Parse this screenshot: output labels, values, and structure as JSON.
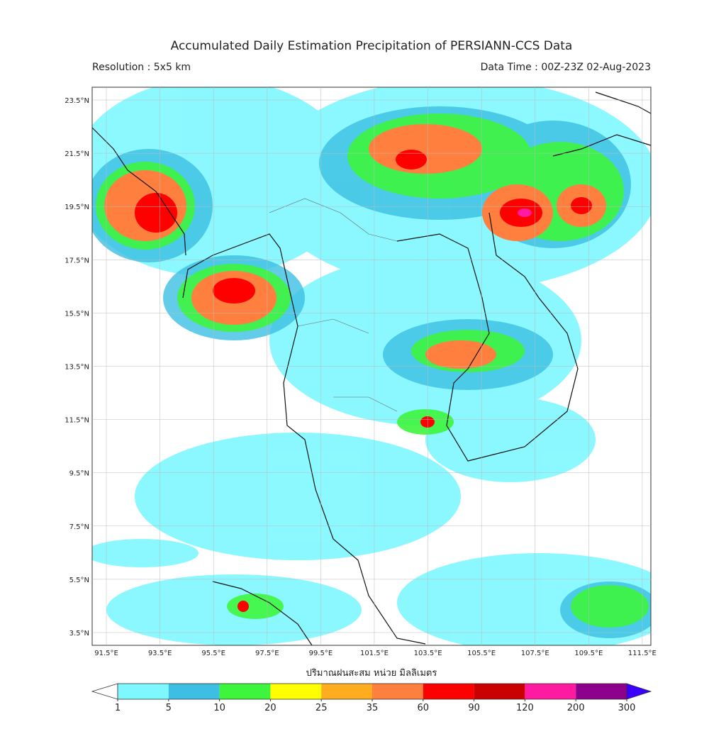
{
  "header": {
    "title": "Accumulated Daily Estimation Precipitation of PERSIANN-CCS Data",
    "resolution": "Resolution : 5x5 km",
    "data_time": "Data Time : 00Z-23Z 02-Aug-2023"
  },
  "map": {
    "lonlim": [
      90.97,
      111.82
    ],
    "latlim": [
      3.02,
      23.98
    ],
    "lon_ticks": [
      {
        "value": 91.5,
        "label": "91.5°E"
      },
      {
        "value": 93.5,
        "label": "93.5°E"
      },
      {
        "value": 95.5,
        "label": "95.5°E"
      },
      {
        "value": 97.5,
        "label": "97.5°E"
      },
      {
        "value": 99.5,
        "label": "99.5°E"
      },
      {
        "value": 101.5,
        "label": "101.5°E"
      },
      {
        "value": 103.5,
        "label": "103.5°E"
      },
      {
        "value": 105.5,
        "label": "105.5°E"
      },
      {
        "value": 107.5,
        "label": "107.5°E"
      },
      {
        "value": 109.5,
        "label": "109.5°E"
      },
      {
        "value": 111.5,
        "label": "111.5°E"
      }
    ],
    "lat_ticks": [
      {
        "value": 23.5,
        "label": "23.5°N"
      },
      {
        "value": 21.5,
        "label": "21.5°N"
      },
      {
        "value": 19.5,
        "label": "19.5°N"
      },
      {
        "value": 17.5,
        "label": "17.5°N"
      },
      {
        "value": 15.5,
        "label": "15.5°N"
      },
      {
        "value": 13.5,
        "label": "13.5°N"
      },
      {
        "value": 11.5,
        "label": "11.5°N"
      },
      {
        "value": 9.5,
        "label": "9.5°N"
      },
      {
        "value": 7.5,
        "label": "7.5°N"
      },
      {
        "value": 5.5,
        "label": "5.5°N"
      },
      {
        "value": 3.5,
        "label": "3.5°N"
      }
    ]
  },
  "legend": {
    "title": "ปริมาณฝนสะสม หน่วย มิลลิเมตร",
    "ticks": [
      1,
      5,
      10,
      20,
      25,
      35,
      60,
      90,
      120,
      200,
      300
    ],
    "colors": [
      "#7ff7ff",
      "#3cbfe3",
      "#3ef53e",
      "#ffff00",
      "#ffad1f",
      "#ff7f3f",
      "#ff0000",
      "#c80000",
      "#ff1aa0",
      "#8c008c"
    ],
    "under_color": "#ffffff",
    "over_color": "#3c00ff"
  }
}
